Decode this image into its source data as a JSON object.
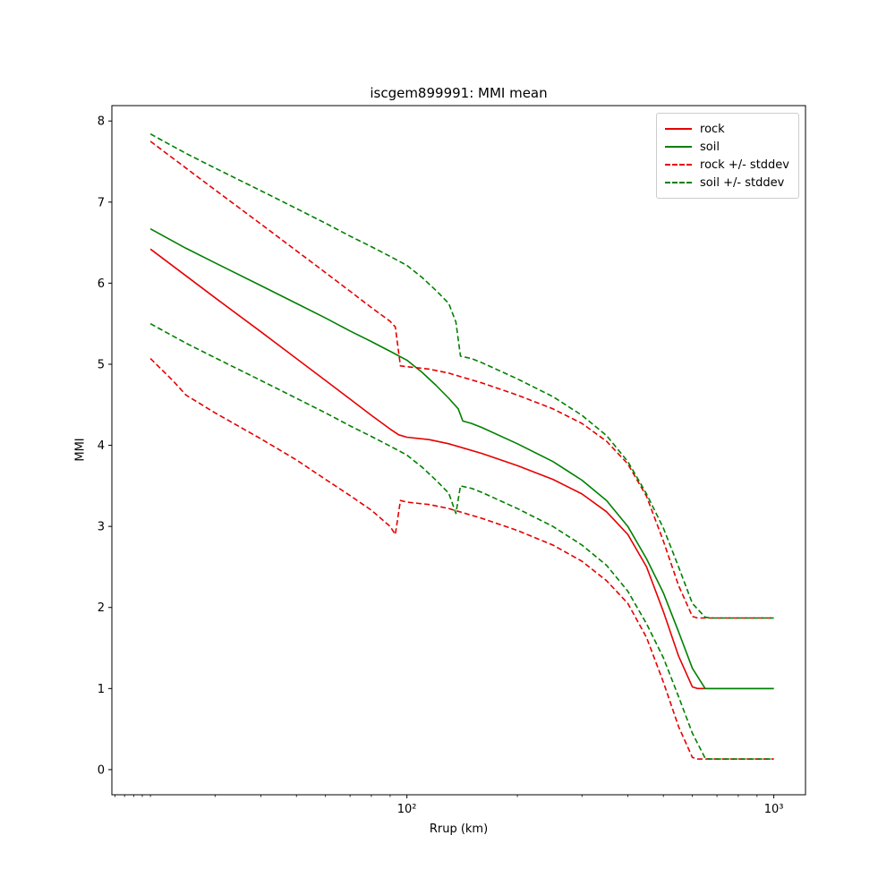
{
  "chart_data": {
    "type": "line",
    "title": "iscgem899991: MMI mean",
    "xlabel": "Rrup (km)",
    "ylabel": "MMI",
    "x_scale": "log",
    "grid": false,
    "xlim": [
      15.7,
      1220
    ],
    "ylim": [
      -0.31,
      8.19
    ],
    "y_ticks": [
      0,
      1,
      2,
      3,
      4,
      5,
      6,
      7,
      8
    ],
    "x_major_ticks": [
      {
        "value": 100,
        "label": "10²"
      },
      {
        "value": 1000,
        "label": "10³"
      }
    ],
    "x_minor_ticks": [
      16,
      17,
      18,
      19,
      20,
      30,
      40,
      50,
      60,
      70,
      80,
      90,
      200,
      300,
      400,
      500,
      600,
      700,
      800,
      900
    ],
    "legend": {
      "position": "upper right",
      "entries": [
        {
          "label": "rock",
          "color": "#e60000",
          "dash": "solid"
        },
        {
          "label": "soil",
          "color": "#008000",
          "dash": "solid"
        },
        {
          "label": "rock +/- stddev",
          "color": "#e60000",
          "dash": "dashed"
        },
        {
          "label": "soil +/- stddev",
          "color": "#008000",
          "dash": "dashed"
        }
      ]
    },
    "series": [
      {
        "name": "rock",
        "color": "#e60000",
        "dash": "solid",
        "x": [
          20,
          25,
          30,
          40,
          50,
          60,
          70,
          80,
          90,
          95,
          100,
          115,
          130,
          160,
          200,
          250,
          300,
          350,
          400,
          450,
          500,
          550,
          600,
          620,
          1000
        ],
        "y": [
          6.42,
          6.09,
          5.82,
          5.4,
          5.07,
          4.8,
          4.57,
          4.37,
          4.2,
          4.13,
          4.1,
          4.07,
          4.02,
          3.9,
          3.75,
          3.58,
          3.4,
          3.18,
          2.9,
          2.5,
          1.95,
          1.4,
          1.02,
          1.0,
          1.0
        ]
      },
      {
        "name": "soil",
        "color": "#008000",
        "dash": "solid",
        "x": [
          20,
          25,
          30,
          40,
          50,
          60,
          70,
          80,
          90,
          100,
          110,
          120,
          130,
          138,
          142,
          150,
          160,
          200,
          250,
          300,
          350,
          400,
          450,
          500,
          550,
          600,
          650,
          1000
        ],
        "y": [
          6.67,
          6.43,
          6.25,
          5.97,
          5.75,
          5.57,
          5.41,
          5.28,
          5.16,
          5.05,
          4.9,
          4.74,
          4.58,
          4.45,
          4.3,
          4.27,
          4.22,
          4.02,
          3.8,
          3.57,
          3.32,
          3.0,
          2.6,
          2.18,
          1.7,
          1.25,
          1.0,
          1.0
        ]
      },
      {
        "name": "rock-plus-stddev",
        "color": "#e60000",
        "dash": "dashed",
        "x": [
          20,
          25,
          30,
          40,
          50,
          60,
          70,
          80,
          90,
          93,
          96,
          100,
          115,
          130,
          160,
          200,
          250,
          300,
          350,
          400,
          450,
          500,
          550,
          600,
          620,
          1000
        ],
        "y": [
          7.75,
          7.42,
          7.15,
          6.73,
          6.4,
          6.13,
          5.9,
          5.7,
          5.53,
          5.46,
          4.98,
          4.97,
          4.94,
          4.89,
          4.77,
          4.62,
          4.45,
          4.27,
          4.05,
          3.77,
          3.37,
          2.82,
          2.27,
          1.89,
          1.87,
          1.87
        ]
      },
      {
        "name": "rock-minus-stddev",
        "color": "#e60000",
        "dash": "dashed",
        "x": [
          20,
          23,
          25,
          30,
          40,
          50,
          60,
          70,
          80,
          90,
          93,
          96,
          100,
          115,
          130,
          160,
          200,
          250,
          300,
          350,
          400,
          450,
          500,
          550,
          600,
          620,
          1000
        ],
        "y": [
          5.07,
          4.8,
          4.62,
          4.4,
          4.08,
          3.82,
          3.58,
          3.38,
          3.2,
          3.0,
          2.9,
          3.32,
          3.3,
          3.27,
          3.22,
          3.1,
          2.95,
          2.77,
          2.57,
          2.33,
          2.05,
          1.63,
          1.08,
          0.53,
          0.15,
          0.13,
          0.13
        ]
      },
      {
        "name": "soil-plus-stddev",
        "color": "#008000",
        "dash": "dashed",
        "x": [
          20,
          25,
          30,
          40,
          50,
          60,
          70,
          80,
          90,
          100,
          110,
          120,
          130,
          136,
          140,
          150,
          160,
          200,
          250,
          300,
          350,
          400,
          450,
          500,
          550,
          600,
          650,
          670,
          1000
        ],
        "y": [
          7.84,
          7.6,
          7.42,
          7.14,
          6.92,
          6.74,
          6.58,
          6.45,
          6.33,
          6.22,
          6.07,
          5.91,
          5.75,
          5.52,
          5.1,
          5.07,
          5.02,
          4.82,
          4.6,
          4.37,
          4.12,
          3.8,
          3.4,
          2.98,
          2.5,
          2.05,
          1.88,
          1.87,
          1.87
        ]
      },
      {
        "name": "soil-minus-stddev",
        "color": "#008000",
        "dash": "dashed",
        "x": [
          20,
          25,
          30,
          40,
          50,
          60,
          70,
          80,
          90,
          100,
          110,
          120,
          130,
          136,
          140,
          150,
          160,
          200,
          250,
          300,
          350,
          400,
          450,
          500,
          550,
          600,
          650,
          670,
          1000
        ],
        "y": [
          5.5,
          5.26,
          5.08,
          4.8,
          4.58,
          4.4,
          4.24,
          4.11,
          3.99,
          3.88,
          3.73,
          3.57,
          3.41,
          3.16,
          3.5,
          3.47,
          3.42,
          3.22,
          3.0,
          2.77,
          2.52,
          2.2,
          1.8,
          1.38,
          0.9,
          0.45,
          0.14,
          0.13,
          0.13
        ]
      }
    ]
  }
}
